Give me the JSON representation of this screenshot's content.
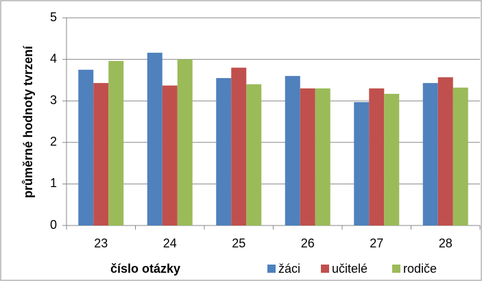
{
  "chart_data": {
    "type": "bar",
    "x_label": "číslo otázky",
    "y_label": "průměrné hodnoty tvrzení",
    "categories": [
      "23",
      "24",
      "25",
      "26",
      "27",
      "28"
    ],
    "series": [
      {
        "name": "žáci",
        "color": "#4f81bd",
        "values": [
          3.75,
          4.16,
          3.55,
          3.6,
          2.97,
          3.43
        ]
      },
      {
        "name": "učitelé",
        "color": "#c0504d",
        "values": [
          3.43,
          3.37,
          3.8,
          3.3,
          3.3,
          3.57
        ]
      },
      {
        "name": "rodiče",
        "color": "#9bbb59",
        "values": [
          3.96,
          4.0,
          3.4,
          3.3,
          3.17,
          3.32
        ]
      }
    ],
    "ylim": [
      0,
      5
    ],
    "yticks": [
      0,
      1,
      2,
      3,
      4,
      5
    ],
    "grid": true,
    "legend": "bottom-right"
  }
}
